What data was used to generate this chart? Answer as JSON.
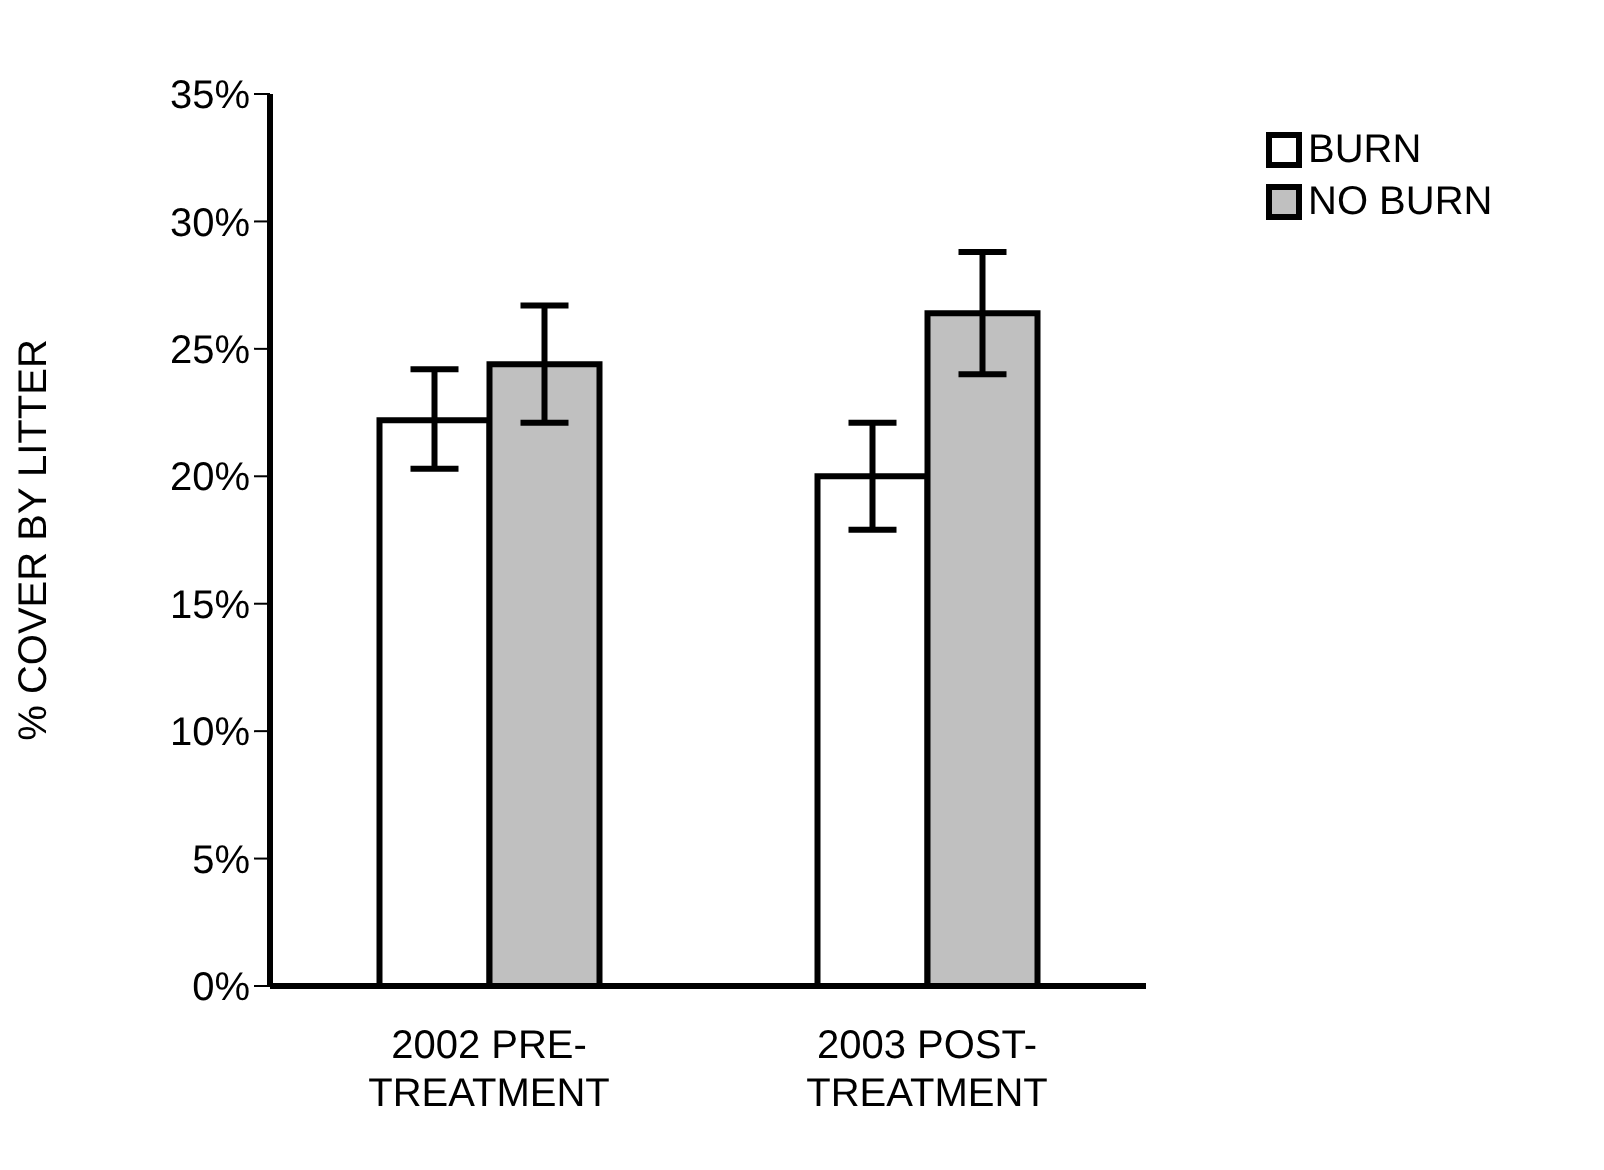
{
  "chart_data": {
    "type": "bar",
    "ylabel": "% COVER BY LITTER",
    "categories": [
      "2002 PRE-TREATMENT",
      "2003 POST-TREATMENT"
    ],
    "series": [
      {
        "name": "BURN",
        "color": "#ffffff",
        "values": [
          22.2,
          20.0
        ],
        "errors": [
          [
            20.3,
            24.2
          ],
          [
            17.9,
            22.1
          ]
        ]
      },
      {
        "name": "NO BURN",
        "color": "#c0c0c0",
        "values": [
          24.4,
          26.4
        ],
        "errors": [
          [
            22.1,
            26.7
          ],
          [
            24.0,
            28.8
          ]
        ]
      }
    ],
    "ylim": [
      0,
      35
    ],
    "yticks": [
      {
        "value": 0,
        "label": "0%"
      },
      {
        "value": 5,
        "label": "5%"
      },
      {
        "value": 10,
        "label": "10%"
      },
      {
        "value": 15,
        "label": "15%"
      },
      {
        "value": 20,
        "label": "20%"
      },
      {
        "value": 25,
        "label": "25%"
      },
      {
        "value": 30,
        "label": "30%"
      },
      {
        "value": 35,
        "label": "35%"
      }
    ],
    "grid": false,
    "legend": "top right"
  }
}
